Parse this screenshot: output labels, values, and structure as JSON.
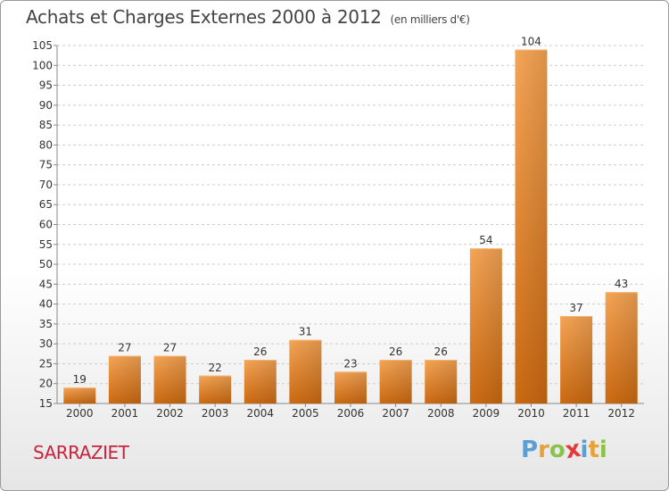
{
  "title": "Achats et Charges Externes 2000 à 2012",
  "unit": "(en milliers d'€)",
  "commune": "SARRAZIET",
  "logo": [
    "P",
    "r",
    "o",
    "x",
    "i",
    "t",
    "i"
  ],
  "logo_colors": [
    "#5aa0d6",
    "#e8a23a",
    "#8ac34a",
    "#e53a3a",
    "#5aa0d6",
    "#e8a23a",
    "#8ac34a"
  ],
  "colors": {
    "bar": "#f0922e",
    "bar_dark": "#cc6e16",
    "axis": "#888888",
    "grid": "#cccccc"
  },
  "chart_data": {
    "type": "bar",
    "categories": [
      "2000",
      "2001",
      "2002",
      "2003",
      "2004",
      "2005",
      "2006",
      "2007",
      "2008",
      "2009",
      "2010",
      "2011",
      "2012"
    ],
    "values": [
      19,
      27,
      27,
      22,
      26,
      31,
      23,
      26,
      26,
      54,
      104,
      37,
      43
    ],
    "ylim": [
      15,
      105
    ],
    "yticks": [
      15,
      20,
      25,
      30,
      35,
      40,
      45,
      50,
      55,
      60,
      65,
      70,
      75,
      80,
      85,
      90,
      95,
      100,
      105
    ],
    "grid": "horizontal dashed",
    "legend": "none"
  }
}
